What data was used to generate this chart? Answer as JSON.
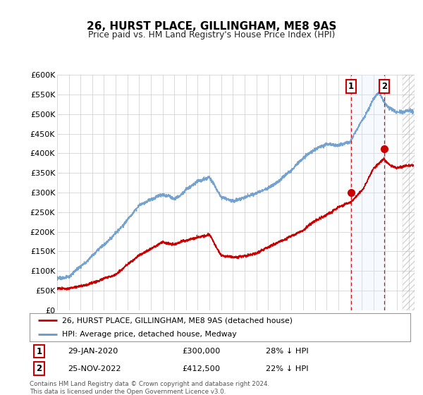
{
  "title": "26, HURST PLACE, GILLINGHAM, ME8 9AS",
  "subtitle": "Price paid vs. HM Land Registry's House Price Index (HPI)",
  "hpi_color": "#6699cc",
  "price_color": "#cc0000",
  "annotation_box_color": "#cc0000",
  "background_color": "#ffffff",
  "plot_bg_color": "#ffffff",
  "grid_color": "#cccccc",
  "shade_color": "#ddeeff",
  "ylim": [
    0,
    600000
  ],
  "yticks": [
    0,
    50000,
    100000,
    150000,
    200000,
    250000,
    300000,
    350000,
    400000,
    450000,
    500000,
    550000,
    600000
  ],
  "sale1": {
    "date_label": "1",
    "date": "29-JAN-2020",
    "price": 300000,
    "hpi_pct": "28% ↓ HPI",
    "x": 2020.08
  },
  "sale2": {
    "date_label": "2",
    "date": "25-NOV-2022",
    "price": 412500,
    "hpi_pct": "22% ↓ HPI",
    "x": 2022.9
  },
  "legend_entries": [
    "26, HURST PLACE, GILLINGHAM, ME8 9AS (detached house)",
    "HPI: Average price, detached house, Medway"
  ],
  "footer": "Contains HM Land Registry data © Crown copyright and database right 2024.\nThis data is licensed under the Open Government Licence v3.0.",
  "xmin": 1995,
  "xmax": 2025.5
}
